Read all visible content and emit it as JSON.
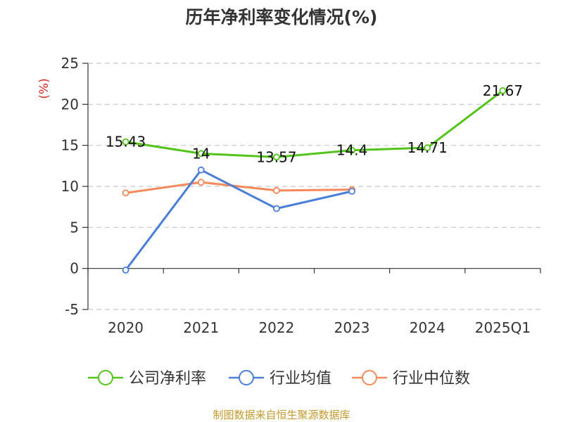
{
  "chart_data": {
    "type": "line",
    "title": "历年净利率变化情况(%)",
    "ylabel": "(%)",
    "categories": [
      "2020",
      "2021",
      "2022",
      "2023",
      "2024",
      "2025Q1"
    ],
    "ylim": [
      -5,
      25
    ],
    "yticks": [
      -5,
      0,
      5,
      10,
      15,
      20,
      25
    ],
    "grid": true,
    "legend_position": "bottom",
    "series": [
      {
        "name": "公司净利率",
        "color": "#52c41a",
        "values": [
          15.43,
          14,
          13.57,
          14.4,
          14.71,
          21.67
        ],
        "labels": [
          "15.43",
          "14",
          "13.57",
          "14.4",
          "14.71",
          "21.67"
        ]
      },
      {
        "name": "行业均值",
        "color": "#4a7fd9",
        "values": [
          -0.2,
          12.0,
          7.3,
          9.4,
          null,
          null
        ]
      },
      {
        "name": "行业中位数",
        "color": "#f5895a",
        "values": [
          9.2,
          10.5,
          9.5,
          9.6,
          null,
          null
        ]
      }
    ]
  },
  "source": "制图数据来自恒生聚源数据库"
}
